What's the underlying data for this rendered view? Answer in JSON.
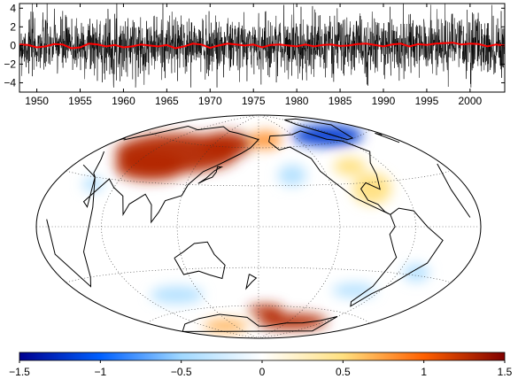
{
  "chart_data": [
    {
      "type": "line",
      "x_range": [
        1948,
        2004
      ],
      "ylim": [
        -5,
        4.5
      ],
      "x_ticks": [
        1950,
        1955,
        1960,
        1965,
        1970,
        1975,
        1980,
        1985,
        1990,
        1995,
        2000
      ],
      "y_ticks": [
        -4,
        -2,
        0,
        2,
        4
      ],
      "grid": false,
      "series": [
        {
          "role": "daily_index",
          "color": "#000000",
          "amplitude_typical": 1.6,
          "range": [
            -4.5,
            4.5
          ]
        },
        {
          "role": "smoothed",
          "color": "#ff0000",
          "x": [
            1948,
            1949,
            1950,
            1951,
            1952,
            1953,
            1954,
            1955,
            1956,
            1957,
            1958,
            1959,
            1960,
            1961,
            1962,
            1963,
            1964,
            1965,
            1966,
            1967,
            1968,
            1969,
            1970,
            1971,
            1972,
            1973,
            1974,
            1975,
            1976,
            1977,
            1978,
            1979,
            1980,
            1981,
            1982,
            1983,
            1984,
            1985,
            1986,
            1987,
            1988,
            1989,
            1990,
            1991,
            1992,
            1993,
            1994,
            1995,
            1996,
            1997,
            1998,
            1999,
            2000,
            2001,
            2002,
            2003,
            2004
          ],
          "y": [
            0.1,
            0.05,
            -0.2,
            -0.1,
            0.15,
            0.1,
            -0.3,
            -0.2,
            0.2,
            0.1,
            -0.1,
            0.05,
            -0.2,
            -0.1,
            0.1,
            0.0,
            -0.1,
            0.05,
            -0.3,
            -0.1,
            0.2,
            0.1,
            -0.25,
            0.0,
            0.2,
            0.1,
            0.0,
            0.1,
            -0.2,
            0.05,
            0.1,
            0.0,
            -0.1,
            0.1,
            -0.1,
            0.05,
            0.1,
            -0.05,
            0.0,
            0.15,
            0.2,
            0.05,
            -0.1,
            0.1,
            0.2,
            -0.1,
            0.15,
            0.05,
            0.2,
            0.25,
            0.3,
            0.1,
            0.2,
            0.15,
            -0.1,
            0.1,
            0.0
          ]
        }
      ]
    },
    {
      "type": "heatmap",
      "projection": "Hammer (Pacific-centred)",
      "colorbar": {
        "range": [
          -1.5,
          1.5
        ],
        "ticks": [
          "−1.5",
          "−1",
          "−0.5",
          "0",
          "0.5",
          "1",
          "1.5"
        ],
        "colors": [
          "#00008f",
          "#0060ff",
          "#a0d8ff",
          "#ffffff",
          "#ffe080",
          "#ff6000",
          "#800000"
        ]
      },
      "anomalies": [
        {
          "region": "Eurasia / Siberia",
          "value": 1.3
        },
        {
          "region": "Alaska / Bering",
          "value": 0.8
        },
        {
          "region": "Greenland / Canadian Arctic",
          "value": -1.2
        },
        {
          "region": "Northeast Pacific",
          "value": -0.4
        },
        {
          "region": "North America",
          "value": 0.5
        },
        {
          "region": "Antarctica (East)",
          "value": 1.3
        },
        {
          "region": "Antarctica (West)",
          "value": 0.7
        },
        {
          "region": "Southern Ocean",
          "value": -0.4
        },
        {
          "region": "Tropics",
          "value": 0.0
        }
      ]
    }
  ]
}
